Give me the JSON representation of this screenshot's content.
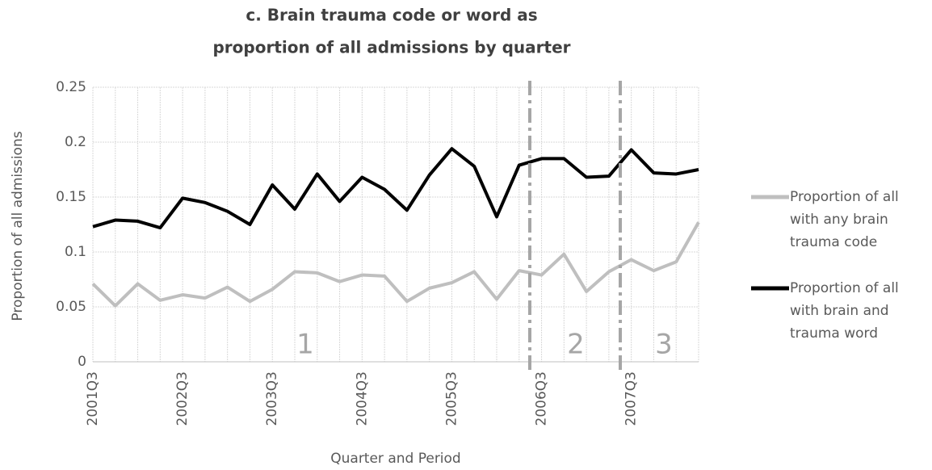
{
  "chart_data": {
    "type": "line",
    "title": [
      "c. Brain trauma code or word as",
      "proportion of all admissions by quarter"
    ],
    "y_label": "Proportion of all admissions",
    "x_label": "Quarter and Period",
    "categories": [
      "2001Q3",
      null,
      null,
      null,
      "2002Q3",
      null,
      null,
      null,
      "2003Q3",
      null,
      null,
      null,
      "2004Q3",
      null,
      null,
      null,
      "2005Q3",
      null,
      null,
      null,
      "2006Q3",
      null,
      null,
      null,
      "2007Q3",
      null,
      null,
      null
    ],
    "series": [
      {
        "name": "Proportion of all with any brain trauma code",
        "color": "#bfbfbf",
        "values": [
          0.071,
          0.051,
          0.071,
          0.056,
          0.061,
          0.058,
          0.068,
          0.055,
          0.066,
          0.082,
          0.081,
          0.073,
          0.079,
          0.078,
          0.055,
          0.067,
          0.072,
          0.082,
          0.057,
          0.083,
          0.079,
          0.098,
          0.064,
          0.082,
          0.093,
          0.083,
          0.091,
          0.127
        ]
      },
      {
        "name": "Proportion of all with brain and trauma word",
        "color": "#000000",
        "values": [
          0.123,
          0.129,
          0.128,
          0.122,
          0.149,
          0.145,
          0.137,
          0.125,
          0.161,
          0.139,
          0.171,
          0.146,
          0.168,
          0.157,
          0.138,
          0.17,
          0.194,
          0.178,
          0.132,
          0.179,
          0.185,
          0.185,
          0.168,
          0.169,
          0.193,
          0.172,
          0.171,
          0.175
        ]
      }
    ],
    "annotations": [
      "1",
      "2",
      "3"
    ],
    "ylim": [
      0,
      0.25
    ],
    "yticks": [
      0,
      0.05,
      0.1,
      0.15,
      0.2,
      0.25
    ],
    "grid": true,
    "legend": "right"
  }
}
